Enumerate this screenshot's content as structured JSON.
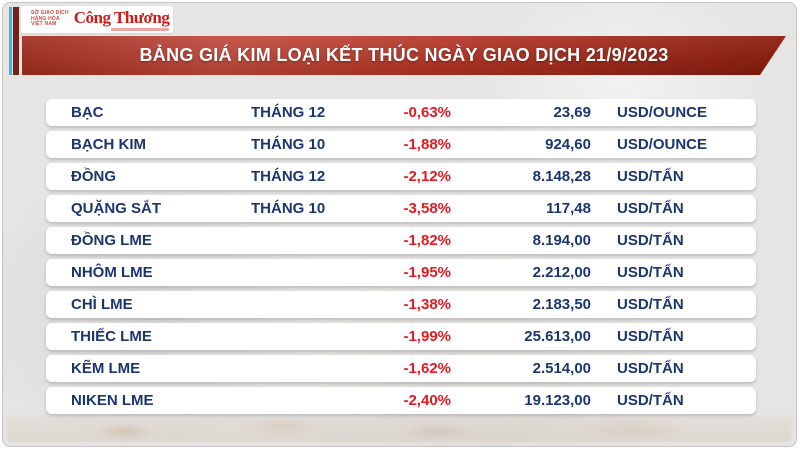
{
  "branding": {
    "mxv_lines": [
      "SỞ GIAO DỊCH",
      "HÀNG HÓA",
      "VIỆT NAM"
    ],
    "newspaper": "Công Thương"
  },
  "header": {
    "title": "BẢNG GIÁ KIM LOẠI KẾT THÚC NGÀY GIAO DỊCH 21/9/2023"
  },
  "colors": {
    "navy_text": "#1b3570",
    "negative_red": "#e8191f",
    "banner_red": "#a02616",
    "mxv_blue": "#2ea9de",
    "cyan_bar": "#3cb9e8",
    "maroon_bar": "#73221b",
    "brand_red": "#ce1c17",
    "page_background": "#e6e5e3"
  },
  "table": {
    "rows": [
      {
        "name": "BẠC",
        "month": "THÁNG 12",
        "change": "-0,63%",
        "price": "23,69",
        "unit": "USD/OUNCE"
      },
      {
        "name": "BẠCH KIM",
        "month": "THÁNG 10",
        "change": "-1,88%",
        "price": "924,60",
        "unit": "USD/OUNCE"
      },
      {
        "name": "ĐỒNG",
        "month": "THÁNG 12",
        "change": "-2,12%",
        "price": "8.148,28",
        "unit": "USD/TẤN"
      },
      {
        "name": "QUẶNG SẮT",
        "month": "THÁNG 10",
        "change": "-3,58%",
        "price": "117,48",
        "unit": "USD/TẤN"
      },
      {
        "name": "ĐỒNG LME",
        "month": "",
        "change": "-1,82%",
        "price": "8.194,00",
        "unit": "USD/TẤN"
      },
      {
        "name": "NHÔM LME",
        "month": "",
        "change": "-1,95%",
        "price": "2.212,00",
        "unit": "USD/TẤN"
      },
      {
        "name": "CHÌ LME",
        "month": "",
        "change": "-1,38%",
        "price": "2.183,50",
        "unit": "USD/TẤN"
      },
      {
        "name": "THIẾC LME",
        "month": "",
        "change": "-1,99%",
        "price": "25.613,00",
        "unit": "USD/TẤN"
      },
      {
        "name": "KẼM LME",
        "month": "",
        "change": "-1,62%",
        "price": "2.514,00",
        "unit": "USD/TẤN"
      },
      {
        "name": "NIKEN LME",
        "month": "",
        "change": "-2,40%",
        "price": "19.123,00",
        "unit": "USD/TẤN"
      }
    ]
  },
  "chart_data": {
    "type": "table",
    "title": "BẢNG GIÁ KIM LOẠI KẾT THÚC NGÀY GIAO DỊCH 21/9/2023",
    "columns": [
      "commodity",
      "contract_month",
      "change_pct",
      "price",
      "unit"
    ],
    "rows": [
      {
        "commodity": "BẠC",
        "contract_month": "THÁNG 12",
        "change_pct": -0.63,
        "price": 23.69,
        "unit": "USD/OUNCE"
      },
      {
        "commodity": "BẠCH KIM",
        "contract_month": "THÁNG 10",
        "change_pct": -1.88,
        "price": 924.6,
        "unit": "USD/OUNCE"
      },
      {
        "commodity": "ĐỒNG",
        "contract_month": "THÁNG 12",
        "change_pct": -2.12,
        "price": 8148.28,
        "unit": "USD/TẤN"
      },
      {
        "commodity": "QUẶNG SẮT",
        "contract_month": "THÁNG 10",
        "change_pct": -3.58,
        "price": 117.48,
        "unit": "USD/TẤN"
      },
      {
        "commodity": "ĐỒNG LME",
        "contract_month": null,
        "change_pct": -1.82,
        "price": 8194.0,
        "unit": "USD/TẤN"
      },
      {
        "commodity": "NHÔM LME",
        "contract_month": null,
        "change_pct": -1.95,
        "price": 2212.0,
        "unit": "USD/TẤN"
      },
      {
        "commodity": "CHÌ LME",
        "contract_month": null,
        "change_pct": -1.38,
        "price": 2183.5,
        "unit": "USD/TẤN"
      },
      {
        "commodity": "THIẾC LME",
        "contract_month": null,
        "change_pct": -1.99,
        "price": 25613.0,
        "unit": "USD/TẤN"
      },
      {
        "commodity": "KẼM LME",
        "contract_month": null,
        "change_pct": -1.62,
        "price": 2514.0,
        "unit": "USD/TẤN"
      },
      {
        "commodity": "NIKEN LME",
        "contract_month": null,
        "change_pct": -2.4,
        "price": 19123.0,
        "unit": "USD/TẤN"
      }
    ]
  }
}
